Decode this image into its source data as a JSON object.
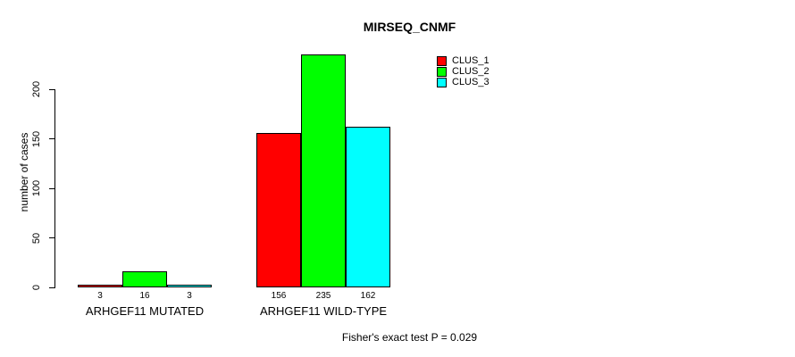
{
  "chart_data": {
    "type": "bar",
    "title": "MIRSEQ_CNMF",
    "ylabel": "number of cases",
    "xlabel": "",
    "categories": [
      "ARHGEF11 MUTATED",
      "ARHGEF11 WILD-TYPE"
    ],
    "series": [
      {
        "name": "CLUS_1",
        "color": "#ff0000",
        "values": [
          3,
          156
        ]
      },
      {
        "name": "CLUS_2",
        "color": "#00ff00",
        "values": [
          16,
          235
        ]
      },
      {
        "name": "CLUS_3",
        "color": "#00ffff",
        "values": [
          3,
          162
        ]
      }
    ],
    "yticks": [
      0,
      50,
      100,
      150,
      200
    ],
    "ylim": [
      0,
      237
    ],
    "grid": false,
    "legend_position": "top-right",
    "bar_value_labels": [
      [
        "3",
        "16",
        "3"
      ],
      [
        "156",
        "235",
        "162"
      ]
    ],
    "annotation": "Fisher's exact test P = 0.029"
  },
  "colors": {
    "background": "#ffffff",
    "text": "#000000",
    "bar_border": "#000000",
    "axis": "#000000"
  }
}
